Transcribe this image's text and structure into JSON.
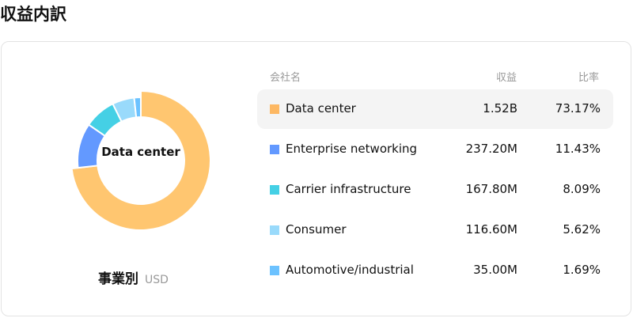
{
  "title": "収益内訳",
  "chart": {
    "center_label": "Data center",
    "caption": "事業別",
    "unit": "USD"
  },
  "table": {
    "headers": {
      "name": "会社名",
      "revenue": "収益",
      "ratio": "比率"
    },
    "rows": [
      {
        "name": "Data center",
        "revenue": "1.52B",
        "ratio": "73.17%",
        "value": 73.17,
        "color": "#FFC670",
        "swatch": "#FDB863"
      },
      {
        "name": "Enterprise networking",
        "revenue": "237.20M",
        "ratio": "11.43%",
        "value": 11.43,
        "color": "#6399FF",
        "swatch": "#6399FF"
      },
      {
        "name": "Carrier infrastructure",
        "revenue": "167.80M",
        "ratio": "8.09%",
        "value": 8.09,
        "color": "#45D0E5",
        "swatch": "#45D0E5"
      },
      {
        "name": "Consumer",
        "revenue": "116.60M",
        "ratio": "5.62%",
        "value": 5.62,
        "color": "#99DAFB",
        "swatch": "#99DAFB"
      },
      {
        "name": "Automotive/industrial",
        "revenue": "35.00M",
        "ratio": "1.69%",
        "value": 1.69,
        "color": "#6CC2FF",
        "swatch": "#6CC2FF"
      }
    ]
  }
}
